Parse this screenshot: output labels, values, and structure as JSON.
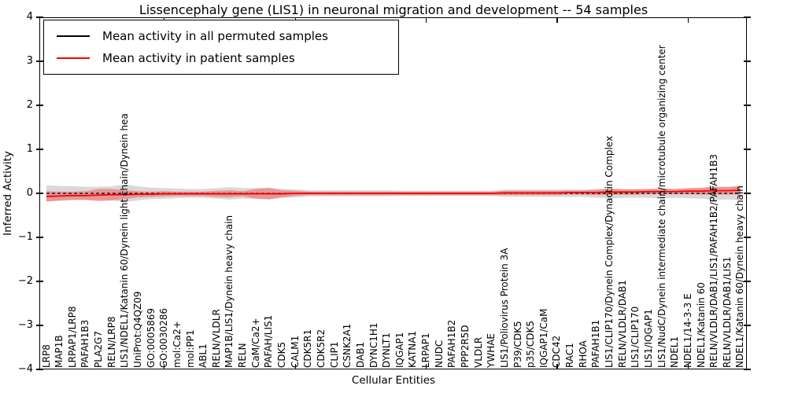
{
  "title": "Lissencephaly gene (LIS1) in neuronal migration and development -- 54 samples",
  "axes": {
    "xlabel": "Cellular Entities",
    "ylabel": "Inferred Activity",
    "ytick_labels": [
      "4",
      "3",
      "2",
      "1",
      "0",
      "−1",
      "−2",
      "−3",
      "−4"
    ],
    "ytick_values": [
      4,
      3,
      2,
      1,
      0,
      -1,
      -2,
      -3,
      -4
    ],
    "xtick_major_indices": [
      9,
      19,
      29,
      39,
      49
    ]
  },
  "legend": {
    "entries": [
      {
        "label": "Mean activity in all permuted samples",
        "color": "#000000"
      },
      {
        "label": "Mean activity in patient samples",
        "color": "#ff0000"
      }
    ]
  },
  "chart_data": {
    "type": "line",
    "title": "Lissencephaly gene (LIS1) in neuronal migration and development -- 54 samples",
    "xlabel": "Cellular Entities",
    "ylabel": "Inferred Activity",
    "ylim": [
      -4,
      4
    ],
    "grid": false,
    "legend_position": "upper left",
    "categories": [
      "LRP8",
      "MAP1B",
      "LRPAP1/LRP8",
      "PAFAH1B3",
      "PLA2G7",
      "RELN/LRP8",
      "LIS1/NDEL1/Katanin 60/Dynein light chain/Dynein hea",
      "UniProt:Q4QZ09",
      "GO:0005869",
      "GO:0030286",
      "mol:Ca2+",
      "mol:PP1",
      "ABL1",
      "RELN/VLDLR",
      "MAP1B/LIS1/Dynein heavy chain",
      "RELN",
      "CaM/Ca2+",
      "PAFAH/LIS1",
      "CDK5",
      "CALM1",
      "CDK5R1",
      "CDK5R2",
      "CLIP1",
      "CSNK2A1",
      "DAB1",
      "DYNC1H1",
      "DYNLT1",
      "IQGAP1",
      "KATNA1",
      "LRPAP1",
      "NUDC",
      "PAFAH1B2",
      "PPP2R5D",
      "VLDLR",
      "YWHAE",
      "LIS1/Poliovirus Protein 3A",
      "P39/CDK5",
      "p35/CDK5",
      "IQGAP1/CaM",
      "CDC42",
      "RAC1",
      "RHOA",
      "PAFAH1B1",
      "LIS1/CLIP170/Dynein Complex/Dynactin Complex",
      "RELN/VLDLR/DAB1",
      "LIS1/CLIP170",
      "LIS1/IQGAP1",
      "LIS1/NudC/Dynein intermediate chain/microtubule organizing center",
      "NDEL1",
      "NDEL1/14-3-3 E",
      "NDEL1/Katanin 60",
      "RELN/VLDLR/DAB1/LIS1/PAFAH1B2/PAFAH1B3",
      "RELN/VLDLR/DAB1/LIS1",
      "NDEL1/Katanin 60/Dynein heavy chain"
    ],
    "series": [
      {
        "name": "Mean activity in all permuted samples",
        "color": "#000000",
        "style": "dashed",
        "values": [
          0,
          0,
          0,
          0,
          0,
          0,
          0,
          0,
          0,
          0,
          0,
          0,
          0,
          0,
          0,
          0,
          0,
          0,
          0,
          0,
          0,
          0,
          0,
          0,
          0,
          0,
          0,
          0,
          0,
          0,
          0,
          0,
          0,
          0,
          0,
          0,
          0,
          0,
          0,
          0,
          0,
          0,
          0,
          0,
          0,
          0,
          0,
          0,
          0,
          0,
          0,
          0,
          0,
          0
        ]
      },
      {
        "name": "Mean activity in patient samples",
        "color": "#ff0000",
        "style": "solid",
        "values": [
          -0.07,
          -0.06,
          -0.05,
          -0.05,
          -0.04,
          -0.03,
          -0.03,
          -0.02,
          -0.02,
          -0.01,
          -0.01,
          -0.01,
          -0.01,
          -0.01,
          -0.01,
          -0.01,
          -0.01,
          -0.01,
          -0.01,
          0,
          0,
          0,
          0,
          0,
          0,
          0,
          0,
          0,
          0,
          0,
          0,
          0,
          0,
          0,
          0,
          0.01,
          0.01,
          0.01,
          0.01,
          0.01,
          0.02,
          0.02,
          0.02,
          0.03,
          0.03,
          0.03,
          0.04,
          0.04,
          0.04,
          0.05,
          0.05,
          0.06,
          0.06,
          0.07
        ]
      }
    ],
    "bands": [
      {
        "name": "Permuted samples activity spread",
        "color": "rgba(0,0,0,0.15)",
        "center_series": 0,
        "half_width": [
          0.18,
          0.17,
          0.16,
          0.15,
          0.15,
          0.16,
          0.2,
          0.16,
          0.13,
          0.12,
          0.11,
          0.1,
          0.1,
          0.12,
          0.14,
          0.12,
          0.12,
          0.13,
          0.1,
          0.09,
          0.07,
          0.07,
          0.07,
          0.07,
          0.07,
          0.07,
          0.07,
          0.06,
          0.06,
          0.06,
          0.06,
          0.06,
          0.06,
          0.06,
          0.06,
          0.08,
          0.08,
          0.08,
          0.08,
          0.08,
          0.08,
          0.08,
          0.1,
          0.12,
          0.1,
          0.1,
          0.1,
          0.12,
          0.1,
          0.11,
          0.12,
          0.15,
          0.14,
          0.16
        ]
      },
      {
        "name": "Patient samples activity spread",
        "color": "rgba(255,0,0,0.30)",
        "center_series": 1,
        "half_width": [
          0.12,
          0.1,
          0.09,
          0.1,
          0.14,
          0.13,
          0.1,
          0.07,
          0.06,
          0.06,
          0.05,
          0.05,
          0.05,
          0.07,
          0.08,
          0.06,
          0.11,
          0.13,
          0.08,
          0.06,
          0.04,
          0.04,
          0.04,
          0.04,
          0.04,
          0.04,
          0.04,
          0.04,
          0.04,
          0.04,
          0.04,
          0.04,
          0.04,
          0.04,
          0.04,
          0.05,
          0.05,
          0.05,
          0.05,
          0.05,
          0.05,
          0.05,
          0.06,
          0.07,
          0.06,
          0.06,
          0.06,
          0.06,
          0.06,
          0.07,
          0.08,
          0.09,
          0.09,
          0.1
        ]
      }
    ]
  }
}
